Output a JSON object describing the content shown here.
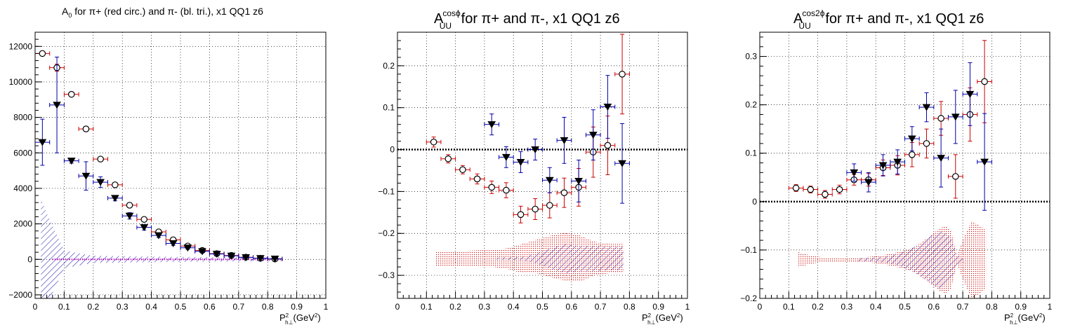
{
  "chart_data": [
    {
      "type": "scatter",
      "title": "A",
      "title_sub": "0",
      "title_rest": " for π+ (red circ.) and π- (bl. tri.), x1 QQ1 z6",
      "xlabel_main": "P",
      "xlabel_sup": "2",
      "xlabel_sub": "h⊥",
      "xlabel_unit": "(GeV",
      "xlabel_unit_sup": "2",
      "xlabel_unit_close": ")",
      "xlim": [
        0,
        1
      ],
      "ylim": [
        -2200,
        12800
      ],
      "xticks": [
        0,
        0.1,
        0.2,
        0.3,
        0.4,
        0.5,
        0.6,
        0.7,
        0.8,
        0.9,
        1
      ],
      "xtick_labels": [
        "0",
        "0.1",
        "0.2",
        "0.3",
        "0.4",
        "0.5",
        "0.6",
        "0.7",
        "0.8",
        "0.9",
        "1"
      ],
      "yticks": [
        -2000,
        0,
        2000,
        4000,
        6000,
        8000,
        10000,
        12000
      ],
      "ytick_labels": [
        "−2000",
        "0",
        "2000",
        "4000",
        "6000",
        "8000",
        "10000",
        "12000"
      ],
      "grid": true,
      "zero_line": false,
      "series": [
        {
          "marker": "circle",
          "color": "#000000",
          "errcolor": "#cc0000",
          "x": [
            0.025,
            0.075,
            0.125,
            0.175,
            0.225,
            0.275,
            0.325,
            0.375,
            0.425,
            0.475,
            0.525,
            0.575,
            0.625,
            0.675,
            0.725,
            0.775,
            0.825
          ],
          "y": [
            11600,
            10800,
            9300,
            7350,
            5650,
            4200,
            3050,
            2250,
            1550,
            1100,
            750,
            500,
            320,
            220,
            120,
            60,
            20
          ],
          "yerr": [
            120,
            200,
            110,
            100,
            90,
            80,
            70,
            60,
            50,
            50,
            45,
            40,
            35,
            30,
            25,
            20,
            15
          ]
        },
        {
          "marker": "triangle-down",
          "color": "#000000",
          "errcolor": "#0000aa",
          "x": [
            0.025,
            0.075,
            0.125,
            0.175,
            0.225,
            0.275,
            0.325,
            0.375,
            0.425,
            0.475,
            0.525,
            0.575,
            0.625,
            0.675,
            0.725,
            0.775,
            0.825
          ],
          "y": [
            6600,
            8700,
            5550,
            4700,
            4350,
            3450,
            2450,
            1800,
            1350,
            900,
            650,
            450,
            300,
            200,
            110,
            60,
            30
          ],
          "yerr": [
            1300,
            2700,
            130,
            800,
            300,
            150,
            180,
            150,
            120,
            110,
            90,
            70,
            60,
            50,
            40,
            30,
            20
          ]
        }
      ]
    },
    {
      "type": "scatter",
      "title": "A",
      "title_sub": "UU",
      "title_sup": "cosϕ",
      "title_rest": " for π+ and π-, x1 QQ1 z6",
      "xlabel_main": "P",
      "xlabel_sup": "2",
      "xlabel_sub": "h⊥",
      "xlabel_unit": "(GeV",
      "xlabel_unit_sup": "2",
      "xlabel_unit_close": ")",
      "xlim": [
        0,
        1
      ],
      "ylim": [
        -0.355,
        0.28
      ],
      "xticks": [
        0,
        0.1,
        0.2,
        0.3,
        0.4,
        0.5,
        0.6,
        0.7,
        0.8,
        0.9,
        1
      ],
      "xtick_labels": [
        "0",
        "0.1",
        "0.2",
        "0.3",
        "0.4",
        "0.5",
        "0.6",
        "0.7",
        "0.8",
        "0.9",
        "1"
      ],
      "yticks": [
        -0.3,
        -0.2,
        -0.1,
        0,
        0.1,
        0.2
      ],
      "ytick_labels": [
        "−0.3",
        "−0.2",
        "−0.1",
        "0",
        "0.1",
        "0.2"
      ],
      "grid": true,
      "zero_line": true,
      "series": [
        {
          "marker": "circle",
          "color": "#000000",
          "errcolor": "#cc0000",
          "x": [
            0.125,
            0.175,
            0.225,
            0.275,
            0.325,
            0.375,
            0.425,
            0.475,
            0.525,
            0.575,
            0.625,
            0.675,
            0.725,
            0.775
          ],
          "y": [
            0.018,
            -0.022,
            -0.048,
            -0.07,
            -0.09,
            -0.097,
            -0.155,
            -0.142,
            -0.133,
            -0.103,
            -0.09,
            -0.006,
            0.01,
            0.18
          ],
          "yerr": [
            0.012,
            0.01,
            0.01,
            0.012,
            0.015,
            0.018,
            0.02,
            0.025,
            0.03,
            0.035,
            0.045,
            0.06,
            0.07,
            0.095
          ]
        },
        {
          "marker": "triangle-down",
          "color": "#000000",
          "errcolor": "#0000aa",
          "x": [
            0.325,
            0.375,
            0.425,
            0.475,
            0.525,
            0.575,
            0.625,
            0.675,
            0.725,
            0.775
          ],
          "y": [
            0.06,
            -0.018,
            -0.03,
            0.0,
            -0.073,
            0.022,
            -0.075,
            0.035,
            0.102,
            -0.033
          ],
          "yerr": [
            0.025,
            0.025,
            0.025,
            0.025,
            0.03,
            0.055,
            0.05,
            0.06,
            0.075,
            0.095
          ]
        }
      ],
      "bands": [
        {
          "color": "#cc0000",
          "style": "dots",
          "x": [
            0.13,
            0.18,
            0.23,
            0.28,
            0.33,
            0.38,
            0.43,
            0.48,
            0.53,
            0.58,
            0.63,
            0.68,
            0.73,
            0.78
          ],
          "center": [
            -0.26,
            -0.26,
            -0.26,
            -0.26,
            -0.26,
            -0.26,
            -0.26,
            -0.255,
            -0.255,
            -0.255,
            -0.26,
            -0.26,
            -0.26,
            -0.26
          ],
          "half": [
            0.018,
            0.018,
            0.018,
            0.02,
            0.02,
            0.025,
            0.035,
            0.04,
            0.05,
            0.058,
            0.055,
            0.04,
            0.035,
            0.035
          ]
        },
        {
          "color": "#0000aa",
          "style": "hatch",
          "x": [
            0.33,
            0.38,
            0.43,
            0.48,
            0.53,
            0.58,
            0.63,
            0.68,
            0.73,
            0.78
          ],
          "center": [
            -0.26,
            -0.26,
            -0.26,
            -0.26,
            -0.26,
            -0.26,
            -0.26,
            -0.26,
            -0.26,
            -0.26
          ],
          "half": [
            0.002,
            0.003,
            0.004,
            0.012,
            0.025,
            0.035,
            0.03,
            0.03,
            0.028,
            0.028
          ]
        }
      ]
    },
    {
      "type": "scatter",
      "title": "A",
      "title_sub": "UU",
      "title_sup": "cos2ϕ",
      "title_rest": " for π+ and π-, x1 QQ1 z6",
      "xlabel_main": "P",
      "xlabel_sup": "2",
      "xlabel_sub": "h⊥",
      "xlabel_unit": "(GeV",
      "xlabel_unit_sup": "2",
      "xlabel_unit_close": ")",
      "xlim": [
        0,
        1
      ],
      "ylim": [
        -0.2,
        0.35
      ],
      "xticks": [
        0,
        0.1,
        0.2,
        0.3,
        0.4,
        0.5,
        0.6,
        0.7,
        0.8,
        0.9,
        1
      ],
      "xtick_labels": [
        "0",
        "0.1",
        "0.2",
        "0.3",
        "0.4",
        "0.5",
        "0.6",
        "0.7",
        "0.8",
        "0.9",
        "1"
      ],
      "yticks": [
        -0.2,
        -0.1,
        0,
        0.1,
        0.2,
        0.3
      ],
      "ytick_labels": [
        "−0.2",
        "−0.1",
        "0",
        "0.1",
        "0.2",
        "0.3"
      ],
      "grid": true,
      "zero_line": true,
      "series": [
        {
          "marker": "circle",
          "color": "#000000",
          "errcolor": "#cc0000",
          "x": [
            0.125,
            0.175,
            0.225,
            0.275,
            0.325,
            0.375,
            0.425,
            0.475,
            0.525,
            0.575,
            0.625,
            0.675,
            0.725,
            0.775
          ],
          "y": [
            0.028,
            0.025,
            0.015,
            0.025,
            0.045,
            0.045,
            0.07,
            0.075,
            0.097,
            0.12,
            0.172,
            0.052,
            0.18,
            0.248
          ],
          "yerr": [
            0.007,
            0.007,
            0.008,
            0.009,
            0.011,
            0.013,
            0.016,
            0.02,
            0.025,
            0.03,
            0.035,
            0.045,
            0.055,
            0.085
          ]
        },
        {
          "marker": "triangle-down",
          "color": "#000000",
          "errcolor": "#0000aa",
          "x": [
            0.325,
            0.375,
            0.425,
            0.475,
            0.525,
            0.575,
            0.625,
            0.675,
            0.725,
            0.775
          ],
          "y": [
            0.06,
            0.04,
            0.075,
            0.082,
            0.13,
            0.195,
            0.09,
            0.175,
            0.222,
            0.082
          ],
          "yerr": [
            0.018,
            0.02,
            0.022,
            0.025,
            0.025,
            0.03,
            0.06,
            0.055,
            0.065,
            0.1
          ]
        }
      ],
      "bands": [
        {
          "color": "#cc0000",
          "style": "dots",
          "x": [
            0.13,
            0.18,
            0.23,
            0.28,
            0.33,
            0.38,
            0.43,
            0.48,
            0.53,
            0.58,
            0.62,
            0.64,
            0.66,
            0.68,
            0.7,
            0.73,
            0.76,
            0.78
          ],
          "center": [
            -0.12,
            -0.12,
            -0.12,
            -0.12,
            -0.12,
            -0.12,
            -0.12,
            -0.12,
            -0.12,
            -0.12,
            -0.12,
            -0.12,
            -0.12,
            -0.12,
            -0.12,
            -0.12,
            -0.12,
            -0.12
          ],
          "half": [
            0.016,
            0.008,
            0.004,
            0.004,
            0.004,
            0.006,
            0.01,
            0.016,
            0.025,
            0.045,
            0.065,
            0.07,
            0.06,
            0.008,
            0.04,
            0.08,
            0.07,
            0.06
          ]
        },
        {
          "color": "#0000aa",
          "style": "hatch",
          "x": [
            0.33,
            0.38,
            0.43,
            0.48,
            0.53,
            0.58,
            0.62,
            0.64,
            0.66,
            0.68,
            0.7
          ],
          "center": [
            -0.12,
            -0.12,
            -0.12,
            -0.12,
            -0.12,
            -0.12,
            -0.12,
            -0.12,
            -0.12,
            -0.12,
            -0.12
          ],
          "half": [
            0.003,
            0.004,
            0.006,
            0.012,
            0.025,
            0.045,
            0.06,
            0.055,
            0.045,
            0.01,
            0.003
          ]
        }
      ]
    }
  ],
  "panel1_band": {
    "color": "#0000aa",
    "x": [
      0.02,
      0.04,
      0.06,
      0.08,
      0.1,
      0.2,
      0.3,
      0.4,
      0.5,
      0.6,
      0.7,
      0.8,
      0.85
    ],
    "center": [
      0,
      0,
      0,
      0,
      0,
      0,
      0,
      0,
      0,
      0,
      0,
      0,
      0
    ],
    "half": [
      3400,
      2600,
      1900,
      1200,
      500,
      200,
      180,
      160,
      140,
      130,
      120,
      100,
      80
    ]
  }
}
